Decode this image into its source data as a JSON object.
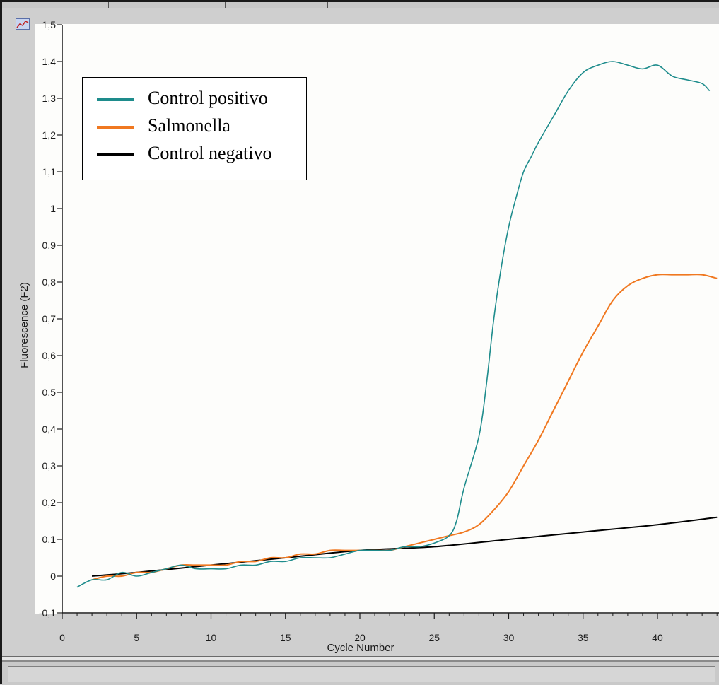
{
  "colors": {
    "panel": "#d4d4d4",
    "plot_bg": "#fdfdfb",
    "axis": "#1a1a1a"
  },
  "chart_data": {
    "type": "line",
    "title": "",
    "xlabel": "Cycle Number",
    "ylabel": "Fluorescence (F2)",
    "xlim": [
      0,
      44
    ],
    "ylim": [
      -0.1,
      1.5
    ],
    "x_ticks": [
      0,
      5,
      10,
      15,
      20,
      25,
      30,
      35,
      40
    ],
    "x_tick_labels": [
      "0",
      "5",
      "10",
      "15",
      "20",
      "25",
      "30",
      "35",
      "40"
    ],
    "y_ticks": [
      -0.1,
      0,
      0.1,
      0.2,
      0.3,
      0.4,
      0.5,
      0.6,
      0.7,
      0.8,
      0.9,
      1,
      1.1,
      1.2,
      1.3,
      1.4,
      1.5
    ],
    "y_tick_labels": [
      "-0,1",
      "0",
      "0,1",
      "0,2",
      "0,3",
      "0,4",
      "0,5",
      "0,6",
      "0,7",
      "0,8",
      "0,9",
      "1",
      "1,1",
      "1,2",
      "1,3",
      "1,4",
      "1,5"
    ],
    "grid": false,
    "legend_position": "top-left",
    "series": [
      {
        "name": "Control positivo",
        "color": "#1e8c8c",
        "x": [
          1,
          2,
          3,
          4,
          5,
          6,
          7,
          8,
          9,
          10,
          11,
          12,
          13,
          14,
          15,
          16,
          17,
          18,
          19,
          20,
          21,
          22,
          23,
          24,
          25,
          26,
          26.5,
          27,
          28,
          28.5,
          29,
          29.5,
          30,
          30.5,
          31,
          31.5,
          32,
          33,
          34,
          35,
          36,
          37,
          38,
          39,
          40,
          41,
          42,
          43,
          43.5
        ],
        "y": [
          -0.03,
          -0.01,
          -0.01,
          0.01,
          0.0,
          0.01,
          0.02,
          0.03,
          0.02,
          0.02,
          0.02,
          0.03,
          0.03,
          0.04,
          0.04,
          0.05,
          0.05,
          0.05,
          0.06,
          0.07,
          0.07,
          0.07,
          0.08,
          0.08,
          0.09,
          0.11,
          0.15,
          0.24,
          0.38,
          0.52,
          0.7,
          0.84,
          0.95,
          1.03,
          1.1,
          1.14,
          1.18,
          1.25,
          1.32,
          1.37,
          1.39,
          1.4,
          1.39,
          1.38,
          1.39,
          1.36,
          1.35,
          1.34,
          1.32
        ]
      },
      {
        "name": "Salmonella",
        "color": "#f07820",
        "x": [
          2,
          3,
          4,
          5,
          6,
          7,
          8,
          9,
          10,
          11,
          12,
          13,
          14,
          15,
          16,
          17,
          18,
          19,
          20,
          21,
          22,
          23,
          24,
          25,
          26,
          27,
          28,
          29,
          30,
          31,
          32,
          33,
          34,
          35,
          36,
          37,
          38,
          39,
          40,
          41,
          42,
          43,
          44
        ],
        "y": [
          -0.01,
          0.0,
          0.0,
          0.01,
          0.01,
          0.02,
          0.03,
          0.03,
          0.03,
          0.03,
          0.04,
          0.04,
          0.05,
          0.05,
          0.06,
          0.06,
          0.07,
          0.07,
          0.07,
          0.07,
          0.07,
          0.08,
          0.09,
          0.1,
          0.11,
          0.12,
          0.14,
          0.18,
          0.23,
          0.3,
          0.37,
          0.45,
          0.53,
          0.61,
          0.68,
          0.75,
          0.79,
          0.81,
          0.82,
          0.82,
          0.82,
          0.82,
          0.81
        ]
      },
      {
        "name": "Control negativo",
        "color": "#000000",
        "x": [
          2,
          5,
          10,
          15,
          20,
          25,
          30,
          35,
          40,
          44
        ],
        "y": [
          0.0,
          0.01,
          0.03,
          0.05,
          0.07,
          0.08,
          0.1,
          0.12,
          0.14,
          0.16
        ]
      }
    ]
  }
}
